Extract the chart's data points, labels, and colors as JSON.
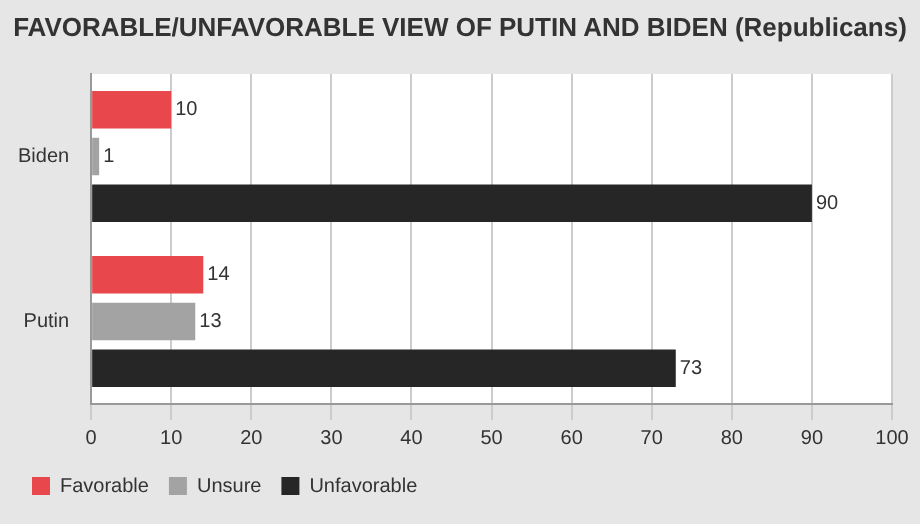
{
  "chart_data": {
    "type": "bar",
    "orientation": "horizontal",
    "title": "FAVORABLE/UNFAVORABLE VIEW OF PUTIN AND BIDEN (Republicans)",
    "categories": [
      "Biden",
      "Putin"
    ],
    "series": [
      {
        "name": "Favorable",
        "color": "#e8474b",
        "values": [
          10,
          14
        ]
      },
      {
        "name": "Unsure",
        "color": "#a3a3a3",
        "values": [
          1,
          13
        ]
      },
      {
        "name": "Unfavorable",
        "color": "#262626",
        "values": [
          90,
          73
        ]
      }
    ],
    "xlim": [
      0,
      100
    ],
    "xticks": [
      0,
      10,
      20,
      30,
      40,
      50,
      60,
      70,
      80,
      90,
      100
    ],
    "grid": "x",
    "legend": "bottom left",
    "data_labels": true
  }
}
